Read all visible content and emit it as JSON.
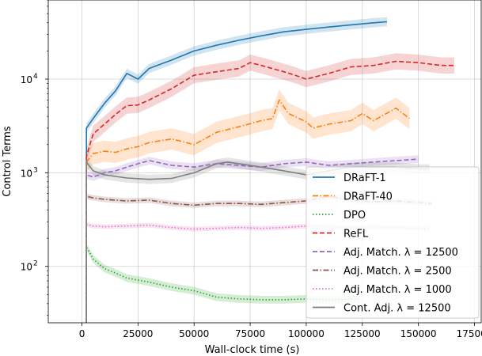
{
  "chart_data": {
    "type": "line",
    "title": "",
    "xlabel": "Wall-clock time (s)",
    "ylabel": "Control Terms",
    "yscale": "log",
    "xlim": [
      -15000,
      178000
    ],
    "ylim": [
      25,
      70000
    ],
    "x_ticks": [
      0,
      25000,
      50000,
      75000,
      100000,
      125000,
      150000,
      175000
    ],
    "x_tick_labels": [
      "0",
      "25000",
      "50000",
      "75000",
      "100000",
      "125000",
      "150000",
      "175000"
    ],
    "y_ticks": [
      100,
      1000,
      10000
    ],
    "y_tick_labels": [
      "10",
      "10",
      "10"
    ],
    "y_tick_exponents": [
      "2",
      "3",
      "4"
    ],
    "grid": true,
    "legend_position": "lower-right",
    "series": [
      {
        "name": "DRaFT-1",
        "color": "#1f77b4",
        "dash": "solid",
        "x": [
          2000,
          5000,
          10000,
          15000,
          20000,
          25000,
          30000,
          40000,
          50000,
          60000,
          70000,
          80000,
          90000,
          100000,
          110000,
          120000,
          130000,
          136000
        ],
        "y": [
          3000,
          3800,
          5500,
          7500,
          11500,
          10000,
          13000,
          16000,
          20000,
          23000,
          26000,
          29000,
          32000,
          34000,
          36000,
          38000,
          40000,
          41000
        ]
      },
      {
        "name": "DRaFT-40",
        "color": "#ff7f0e",
        "dash": "dashdot",
        "x": [
          2000,
          5000,
          10000,
          15000,
          20000,
          25000,
          30000,
          40000,
          50000,
          60000,
          70000,
          80000,
          85000,
          88000,
          92000,
          100000,
          103000,
          110000,
          120000,
          125000,
          130000,
          140000,
          146000
        ],
        "y": [
          1300,
          1600,
          1700,
          1650,
          1800,
          1900,
          2100,
          2300,
          2000,
          2700,
          3100,
          3600,
          3800,
          6000,
          4300,
          3500,
          3000,
          3300,
          3600,
          4300,
          3600,
          4900,
          3800
        ]
      },
      {
        "name": "DPO",
        "color": "#2ca02c",
        "dash": "dotted",
        "x": [
          2000,
          3500,
          5000,
          10000,
          15000,
          20000,
          30000,
          40000,
          50000,
          60000,
          70000,
          80000,
          90000,
          100000,
          110000,
          124000
        ],
        "y": [
          160,
          140,
          120,
          95,
          85,
          75,
          68,
          60,
          55,
          47,
          45,
          44,
          44,
          45,
          44,
          45
        ]
      },
      {
        "name": "ReFL",
        "color": "#d62728",
        "dash": "dashed",
        "x": [
          2000,
          5000,
          10000,
          15000,
          20000,
          25000,
          30000,
          40000,
          50000,
          60000,
          70000,
          75000,
          80000,
          90000,
          95000,
          100000,
          110000,
          120000,
          130000,
          140000,
          150000,
          160000,
          166000
        ],
        "y": [
          1500,
          2600,
          3300,
          4200,
          5200,
          5300,
          6000,
          7900,
          11000,
          12000,
          13000,
          15000,
          14000,
          12000,
          11000,
          10000,
          11500,
          13500,
          14000,
          15500,
          15000,
          14000,
          14000
        ]
      },
      {
        "name": "Adj. Match. λ = 12500",
        "color": "#9467bd",
        "dash": "dashed",
        "x": [
          2000,
          5000,
          10000,
          15000,
          20000,
          25000,
          30000,
          40000,
          50000,
          60000,
          70000,
          80000,
          90000,
          100000,
          110000,
          120000,
          130000,
          140000,
          150000
        ],
        "y": [
          950,
          900,
          1000,
          1050,
          1150,
          1250,
          1350,
          1200,
          1150,
          1250,
          1200,
          1150,
          1250,
          1300,
          1200,
          1250,
          1300,
          1350,
          1400
        ]
      },
      {
        "name": "Adj. Match. λ = 2500",
        "color": "#8c564b",
        "dash": "dashdot",
        "x": [
          2000,
          5000,
          10000,
          20000,
          30000,
          40000,
          50000,
          60000,
          70000,
          80000,
          90000,
          100000,
          110000,
          120000,
          130000,
          140000,
          150000,
          156000
        ],
        "y": [
          560,
          540,
          520,
          500,
          510,
          470,
          450,
          470,
          470,
          460,
          480,
          500,
          560,
          510,
          490,
          500,
          480,
          470
        ]
      },
      {
        "name": "Adj. Match. λ = 1000",
        "color": "#e377c2",
        "dash": "dotted",
        "x": [
          2000,
          5000,
          10000,
          20000,
          30000,
          40000,
          50000,
          60000,
          70000,
          80000,
          90000,
          100000,
          110000,
          120000,
          130000,
          140000,
          150000,
          155000
        ],
        "y": [
          280,
          270,
          265,
          270,
          275,
          260,
          250,
          255,
          260,
          255,
          260,
          270,
          265,
          260,
          265,
          260,
          255,
          250
        ]
      },
      {
        "name": "Cont. Adj. λ = 12500",
        "color": "#7f7f7f",
        "dash": "solid",
        "x": [
          2000,
          5000,
          10000,
          20000,
          30000,
          40000,
          50000,
          60000,
          65000,
          70000,
          80000,
          90000,
          100000,
          110000,
          120000,
          130000,
          140000,
          150000,
          155000
        ],
        "y": [
          1300,
          1050,
          950,
          880,
          850,
          870,
          1000,
          1250,
          1300,
          1250,
          1150,
          1050,
          950,
          1050,
          1150,
          1150,
          1150,
          1100,
          1100
        ]
      }
    ]
  }
}
